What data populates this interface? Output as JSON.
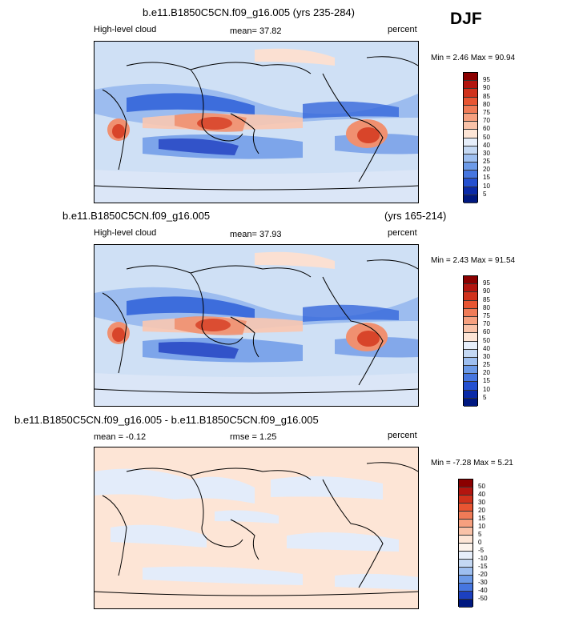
{
  "season": "DJF",
  "panels": [
    {
      "title": "b.e11.B1850C5CN.f09_g16.005 (yrs 235-284)",
      "title_right": "",
      "left": "High-level cloud",
      "center": "mean=  37.82",
      "units": "percent",
      "minmax": "Min =  2.46 Max =  90.94",
      "colorbar": {
        "labels": [
          "95",
          "90",
          "85",
          "80",
          "75",
          "70",
          "60",
          "50",
          "40",
          "30",
          "25",
          "20",
          "15",
          "10",
          "5"
        ],
        "colors": [
          "#8b0000",
          "#b3150f",
          "#d0321c",
          "#e85532",
          "#f07b57",
          "#f6a07f",
          "#f9c2a8",
          "#fde5d6",
          "#e6eefa",
          "#c4d8f3",
          "#9ebff0",
          "#6c9ae8",
          "#4676e0",
          "#2450d0",
          "#0a2aa8",
          "#001880"
        ]
      }
    },
    {
      "title": "b.e11.B1850C5CN.f09_g16.005",
      "title_right": "(yrs 165-214)",
      "left": "High-level cloud",
      "center": "mean=  37.93",
      "units": "percent",
      "minmax": "Min =  2.43 Max =  91.54",
      "colorbar": {
        "labels": [
          "95",
          "90",
          "85",
          "80",
          "75",
          "70",
          "60",
          "50",
          "40",
          "30",
          "25",
          "20",
          "15",
          "10",
          "5"
        ],
        "colors": [
          "#8b0000",
          "#b3150f",
          "#d0321c",
          "#e85532",
          "#f07b57",
          "#f6a07f",
          "#f9c2a8",
          "#fde5d6",
          "#e6eefa",
          "#c4d8f3",
          "#9ebff0",
          "#6c9ae8",
          "#4676e0",
          "#2450d0",
          "#0a2aa8",
          "#001880"
        ]
      }
    },
    {
      "title": "b.e11.B1850C5CN.f09_g16.005 - b.e11.B1850C5CN.f09_g16.005",
      "title_right": "",
      "left": "mean =  -0.12",
      "center": "rmse =   1.25",
      "units": "percent",
      "minmax": "Min =  -7.28 Max =   5.21",
      "colorbar": {
        "labels": [
          "50",
          "40",
          "30",
          "20",
          "15",
          "10",
          "5",
          "0",
          "-5",
          "-10",
          "-15",
          "-20",
          "-30",
          "-40",
          "-50"
        ],
        "colors": [
          "#8b0000",
          "#b3150f",
          "#d0321c",
          "#e85532",
          "#f07b57",
          "#f6a07f",
          "#f9c2a8",
          "#fde5d6",
          "#fdf3ec",
          "#e6eefa",
          "#c4d8f3",
          "#9ebff0",
          "#6c9ae8",
          "#4676e0",
          "#1c40c0",
          "#001880"
        ]
      }
    }
  ],
  "chart_data": [
    {
      "type": "heatmap",
      "title": "b.e11.B1850C5CN.f09_g16.005 (yrs 235-284)",
      "variable": "High-level cloud",
      "units": "percent",
      "mean": 37.82,
      "min": 2.46,
      "max": 90.94,
      "contour_levels": [
        5,
        10,
        15,
        20,
        25,
        30,
        40,
        50,
        60,
        70,
        75,
        80,
        85,
        90,
        95
      ]
    },
    {
      "type": "heatmap",
      "title": "b.e11.B1850C5CN.f09_g16.005 (yrs 165-214)",
      "variable": "High-level cloud",
      "units": "percent",
      "mean": 37.93,
      "min": 2.43,
      "max": 91.54,
      "contour_levels": [
        5,
        10,
        15,
        20,
        25,
        30,
        40,
        50,
        60,
        70,
        75,
        80,
        85,
        90,
        95
      ]
    },
    {
      "type": "heatmap",
      "title": "b.e11.B1850C5CN.f09_g16.005 - b.e11.B1850C5CN.f09_g16.005",
      "units": "percent",
      "mean": -0.12,
      "rmse": 1.25,
      "min": -7.28,
      "max": 5.21,
      "contour_levels": [
        -50,
        -40,
        -30,
        -20,
        -15,
        -10,
        -5,
        0,
        5,
        10,
        15,
        20,
        30,
        40,
        50
      ]
    }
  ]
}
